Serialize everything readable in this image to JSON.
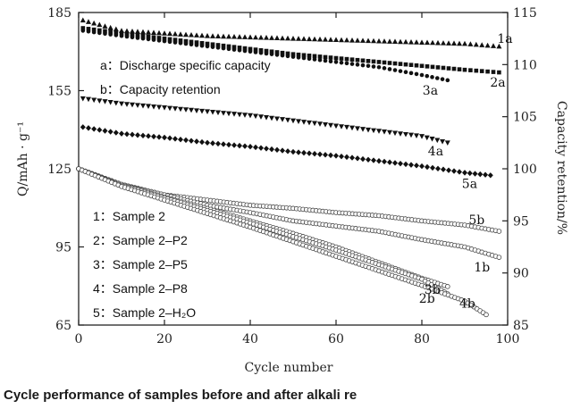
{
  "caption": "Cycle performance of samples before and after alkali re",
  "chart_data": {
    "type": "scatter",
    "xlabel": "Cycle number",
    "ylabel_left": "Q/mAh · g⁻¹",
    "ylabel_right": "Capacity retention/%",
    "xlim": [
      0,
      100
    ],
    "ylim_left": [
      65,
      185
    ],
    "ylim_right": [
      85,
      115
    ],
    "x_ticks": [
      0,
      20,
      40,
      60,
      80,
      100
    ],
    "y_ticks_left": [
      65,
      95,
      125,
      155,
      185
    ],
    "y_ticks_right": [
      85,
      90,
      95,
      100,
      105,
      110,
      115
    ],
    "grid": false,
    "annotations": [
      "a：Discharge specific capacity",
      "b：Capacity retention"
    ],
    "legend": [
      "1：Sample 2",
      "2：Sample 2–P2",
      "3：Sample 2–P5",
      "4：Sample 2–P8",
      "5：Sample 2–H₂O"
    ],
    "series": [
      {
        "name": "1a",
        "axis": "left",
        "marker": "triangle-filled",
        "x": [
          1,
          10,
          20,
          30,
          40,
          50,
          60,
          70,
          80,
          90,
          98
        ],
        "y": [
          182,
          178,
          177,
          176,
          175.5,
          175,
          174.5,
          174,
          173.5,
          173,
          172
        ]
      },
      {
        "name": "2a",
        "axis": "left",
        "marker": "square-filled",
        "x": [
          1,
          10,
          20,
          30,
          40,
          50,
          60,
          70,
          80,
          90,
          98
        ],
        "y": [
          179,
          177,
          175,
          173,
          171,
          169,
          167.5,
          166,
          164.5,
          163,
          162
        ]
      },
      {
        "name": "3a",
        "axis": "left",
        "marker": "circle-filled",
        "x": [
          1,
          10,
          20,
          30,
          40,
          50,
          60,
          70,
          80,
          86
        ],
        "y": [
          178,
          176,
          174,
          172,
          170,
          168,
          166,
          164,
          161,
          159
        ]
      },
      {
        "name": "4a",
        "axis": "left",
        "marker": "triangle-down-filled",
        "x": [
          1,
          10,
          20,
          30,
          40,
          50,
          60,
          70,
          80,
          86
        ],
        "y": [
          152,
          150,
          148.5,
          147,
          145.5,
          143.5,
          141.5,
          139.5,
          137.5,
          135
        ]
      },
      {
        "name": "5a",
        "axis": "left",
        "marker": "diamond-filled",
        "x": [
          1,
          10,
          20,
          30,
          40,
          50,
          60,
          70,
          80,
          90,
          96
        ],
        "y": [
          141,
          138.5,
          137,
          135,
          133.5,
          131.5,
          130,
          128,
          126,
          123.5,
          122.5
        ]
      },
      {
        "name": "5b",
        "axis": "right",
        "marker": "circle-open",
        "x": [
          0,
          10,
          20,
          30,
          40,
          50,
          60,
          70,
          80,
          90,
          98
        ],
        "y": [
          100,
          98.5,
          97.5,
          97,
          96.5,
          96.2,
          95.8,
          95.5,
          95,
          94.6,
          94
        ]
      },
      {
        "name": "1b",
        "axis": "right",
        "marker": "circle-open",
        "x": [
          0,
          10,
          20,
          30,
          40,
          50,
          60,
          70,
          80,
          90,
          98
        ],
        "y": [
          100,
          98.5,
          97.5,
          96.5,
          95.8,
          95,
          94.5,
          94,
          93.2,
          92.5,
          91.5
        ]
      },
      {
        "name": "2b",
        "axis": "right",
        "marker": "circle-open",
        "x": [
          0,
          10,
          20,
          30,
          40,
          50,
          60,
          70,
          80,
          86
        ],
        "y": [
          100,
          98.5,
          97.3,
          96.2,
          95,
          93.8,
          92.5,
          91,
          89.5,
          88.7
        ]
      },
      {
        "name": "3b",
        "axis": "right",
        "marker": "circle-open",
        "x": [
          0,
          10,
          20,
          30,
          40,
          50,
          60,
          70,
          80,
          86
        ],
        "y": [
          100,
          98.4,
          97.2,
          96,
          94.8,
          93.5,
          92.2,
          90.8,
          89.4,
          88
        ]
      },
      {
        "name": "4b",
        "axis": "right",
        "marker": "circle-open",
        "x": [
          0,
          10,
          20,
          30,
          40,
          50,
          60,
          70,
          80,
          90,
          95
        ],
        "y": [
          100,
          98.3,
          97,
          95.7,
          94.4,
          93,
          91.6,
          90.2,
          88.8,
          87.3,
          86
        ]
      }
    ]
  }
}
